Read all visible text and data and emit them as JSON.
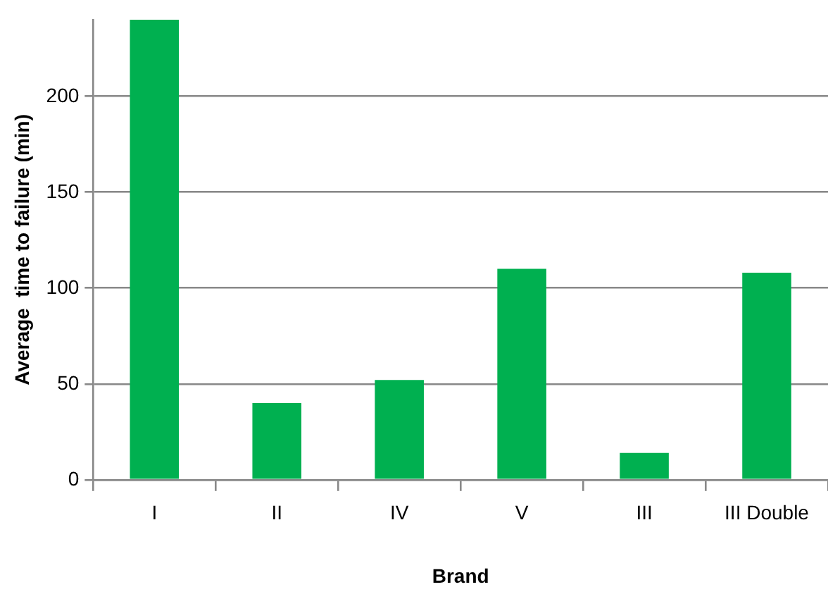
{
  "chart_data": {
    "type": "bar",
    "xlabel": "Brand",
    "ylabel": "Average  time to failure (min)",
    "categories": [
      "I",
      "II",
      "IV",
      "V",
      "III",
      "III Double"
    ],
    "values": [
      240,
      40,
      52,
      110,
      14,
      108
    ],
    "color": "#00b050",
    "ylim": [
      0,
      240
    ],
    "yticks": [
      0,
      50,
      100,
      150,
      200
    ],
    "grid": "y",
    "legend": false
  }
}
